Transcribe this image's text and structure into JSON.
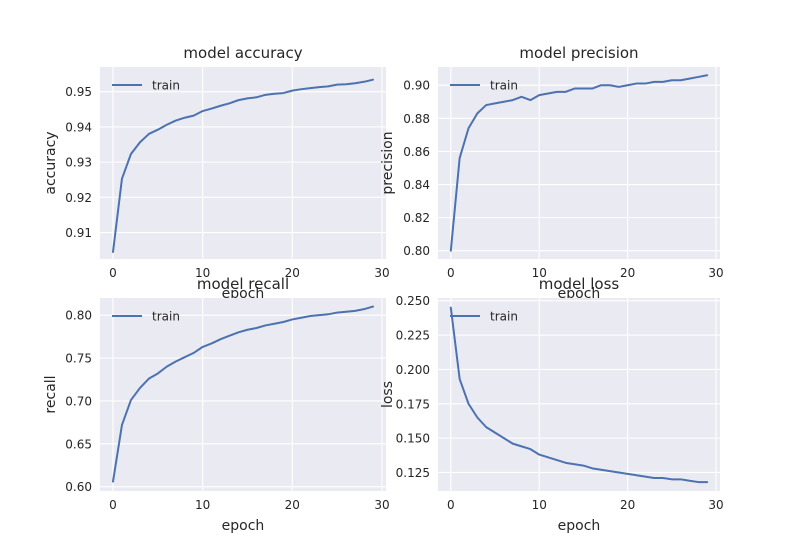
{
  "chart_data": [
    {
      "type": "line",
      "title": "model accuracy",
      "xlabel": "epoch",
      "ylabel": "accuracy",
      "xlim": [
        -1.45,
        30.45
      ],
      "ylim": [
        0.9025,
        0.957
      ],
      "xticks": [
        0,
        10,
        20,
        30
      ],
      "yticks": [
        0.91,
        0.92,
        0.93,
        0.94,
        0.95
      ],
      "ytick_labels": [
        "0.91",
        "0.92",
        "0.93",
        "0.94",
        "0.95"
      ],
      "grid": true,
      "legend_position": "upper-left",
      "series": [
        {
          "name": "train",
          "color": "#4c72b0",
          "x": [
            0,
            1,
            2,
            3,
            4,
            5,
            6,
            7,
            8,
            9,
            10,
            11,
            12,
            13,
            14,
            15,
            16,
            17,
            18,
            19,
            20,
            21,
            22,
            23,
            24,
            25,
            26,
            27,
            28,
            29
          ],
          "y": [
            0.9045,
            0.9253,
            0.9323,
            0.9356,
            0.938,
            0.9392,
            0.9406,
            0.9418,
            0.9426,
            0.9432,
            0.9445,
            0.9452,
            0.946,
            0.9467,
            0.9476,
            0.9481,
            0.9484,
            0.9491,
            0.9494,
            0.9496,
            0.9503,
            0.9507,
            0.951,
            0.9513,
            0.9515,
            0.952,
            0.9521,
            0.9524,
            0.9528,
            0.9534
          ]
        }
      ]
    },
    {
      "type": "line",
      "title": "model precision",
      "xlabel": "epoch",
      "ylabel": "precision",
      "xlim": [
        -1.45,
        30.45
      ],
      "ylim": [
        0.795,
        0.911
      ],
      "xticks": [
        0,
        10,
        20,
        30
      ],
      "yticks": [
        0.8,
        0.82,
        0.84,
        0.86,
        0.88,
        0.9
      ],
      "ytick_labels": [
        "0.80",
        "0.82",
        "0.84",
        "0.86",
        "0.88",
        "0.90"
      ],
      "grid": true,
      "legend_position": "upper-left",
      "series": [
        {
          "name": "train",
          "color": "#4c72b0",
          "x": [
            0,
            1,
            2,
            3,
            4,
            5,
            6,
            7,
            8,
            9,
            10,
            11,
            12,
            13,
            14,
            15,
            16,
            17,
            18,
            19,
            20,
            21,
            22,
            23,
            24,
            25,
            26,
            27,
            28,
            29
          ],
          "y": [
            0.8,
            0.856,
            0.874,
            0.883,
            0.888,
            0.889,
            0.89,
            0.891,
            0.893,
            0.891,
            0.894,
            0.895,
            0.896,
            0.896,
            0.898,
            0.898,
            0.898,
            0.9,
            0.9,
            0.899,
            0.9,
            0.901,
            0.901,
            0.902,
            0.902,
            0.903,
            0.903,
            0.904,
            0.905,
            0.906
          ]
        }
      ]
    },
    {
      "type": "line",
      "title": "model recall",
      "xlabel": "epoch",
      "ylabel": "recall",
      "xlim": [
        -1.45,
        30.45
      ],
      "ylim": [
        0.595,
        0.82
      ],
      "xticks": [
        0,
        10,
        20,
        30
      ],
      "yticks": [
        0.6,
        0.65,
        0.7,
        0.75,
        0.8
      ],
      "ytick_labels": [
        "0.60",
        "0.65",
        "0.70",
        "0.75",
        "0.80"
      ],
      "grid": true,
      "legend_position": "upper-left",
      "series": [
        {
          "name": "train",
          "color": "#4c72b0",
          "x": [
            0,
            1,
            2,
            3,
            4,
            5,
            6,
            7,
            8,
            9,
            10,
            11,
            12,
            13,
            14,
            15,
            16,
            17,
            18,
            19,
            20,
            21,
            22,
            23,
            24,
            25,
            26,
            27,
            28,
            29
          ],
          "y": [
            0.606,
            0.672,
            0.701,
            0.715,
            0.726,
            0.732,
            0.74,
            0.746,
            0.751,
            0.756,
            0.763,
            0.767,
            0.772,
            0.776,
            0.78,
            0.783,
            0.785,
            0.788,
            0.79,
            0.792,
            0.795,
            0.797,
            0.799,
            0.8,
            0.801,
            0.803,
            0.804,
            0.805,
            0.807,
            0.81
          ]
        }
      ]
    },
    {
      "type": "line",
      "title": "model loss",
      "xlabel": "epoch",
      "ylabel": "loss",
      "xlim": [
        -1.45,
        30.45
      ],
      "ylim": [
        0.1115,
        0.252
      ],
      "xticks": [
        0,
        10,
        20,
        30
      ],
      "yticks": [
        0.125,
        0.15,
        0.175,
        0.2,
        0.225,
        0.25
      ],
      "ytick_labels": [
        "0.125",
        "0.150",
        "0.175",
        "0.200",
        "0.225",
        "0.250"
      ],
      "grid": true,
      "legend_position": "upper-left",
      "series": [
        {
          "name": "train",
          "color": "#4c72b0",
          "x": [
            0,
            1,
            2,
            3,
            4,
            5,
            6,
            7,
            8,
            9,
            10,
            11,
            12,
            13,
            14,
            15,
            16,
            17,
            18,
            19,
            20,
            21,
            22,
            23,
            24,
            25,
            26,
            27,
            28,
            29
          ],
          "y": [
            0.245,
            0.193,
            0.175,
            0.165,
            0.158,
            0.154,
            0.15,
            0.146,
            0.144,
            0.142,
            0.138,
            0.136,
            0.134,
            0.132,
            0.131,
            0.13,
            0.128,
            0.127,
            0.126,
            0.125,
            0.124,
            0.123,
            0.122,
            0.121,
            0.121,
            0.12,
            0.12,
            0.119,
            0.118,
            0.118
          ]
        }
      ]
    }
  ]
}
